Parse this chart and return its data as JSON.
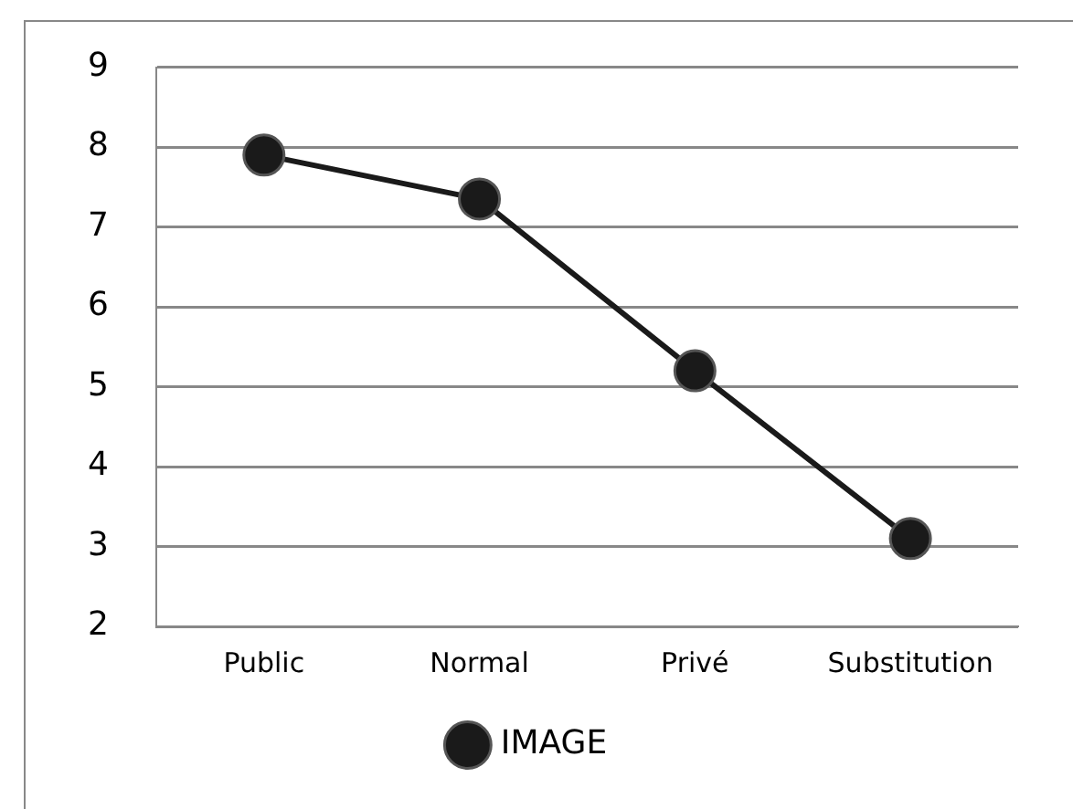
{
  "chart_data": {
    "type": "line",
    "categories": [
      "Public",
      "Normal",
      "Privé",
      "Substitution"
    ],
    "series": [
      {
        "name": "IMAGE",
        "color": "#1a1a1a",
        "values": [
          7.9,
          7.35,
          5.2,
          3.1
        ]
      }
    ],
    "ylim": [
      2,
      9
    ],
    "yticks": [
      2,
      3,
      4,
      5,
      6,
      7,
      8,
      9
    ],
    "grid": "y",
    "legend": "bottom",
    "marker": "circle",
    "line_style": "solid"
  }
}
